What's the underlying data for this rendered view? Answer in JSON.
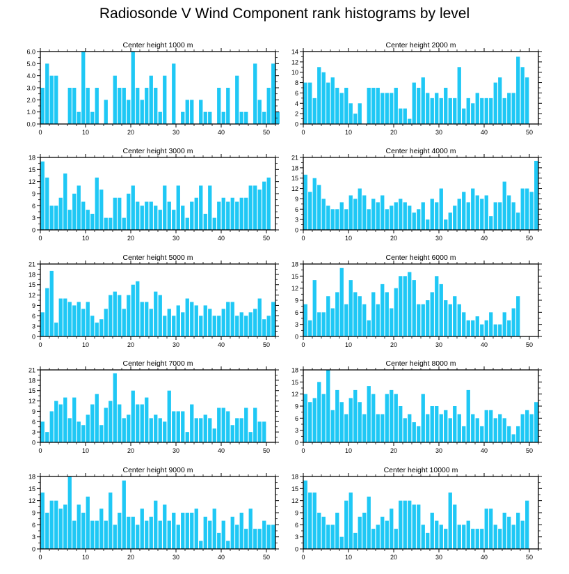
{
  "chart_data": {
    "type": "bar",
    "title": "Radiosonde V Wind Component rank histograms by level",
    "bar_color": "#1fc8f5",
    "x_ticks": [
      "0",
      "10",
      "20",
      "30",
      "40",
      "50"
    ],
    "xlim": [
      0,
      52
    ],
    "panels": [
      {
        "title": "Center height 1000 m",
        "ylim": [
          0,
          6
        ],
        "yticks": [
          "0.0",
          "1.0",
          "2.0",
          "3.0",
          "4.0",
          "5.0",
          "6.0"
        ],
        "ytick_values": [
          0,
          1,
          2,
          3,
          4,
          5,
          6
        ],
        "values": [
          3,
          5,
          4,
          4,
          0,
          0,
          3,
          3,
          1,
          6,
          3,
          1,
          3,
          0,
          2,
          0,
          4,
          3,
          3,
          2,
          6,
          3,
          2,
          3,
          4,
          3,
          1,
          4,
          0,
          5,
          0,
          1,
          2,
          2,
          0,
          2,
          1,
          1,
          0,
          3,
          1,
          3,
          0,
          4,
          1,
          1,
          0,
          5,
          2,
          1,
          3,
          5,
          1
        ]
      },
      {
        "title": "Center height 2000 m",
        "ylim": [
          0,
          14
        ],
        "yticks": [
          "0",
          "2",
          "4",
          "6",
          "8",
          "10",
          "12",
          "14"
        ],
        "ytick_values": [
          0,
          2,
          4,
          6,
          8,
          10,
          12,
          14
        ],
        "values": [
          8,
          8,
          5,
          11,
          10,
          8,
          9,
          7,
          6,
          7,
          4,
          2,
          4,
          0,
          7,
          7,
          7,
          6,
          6,
          6,
          7,
          3,
          3,
          1,
          8,
          7,
          9,
          6,
          5,
          6,
          5,
          7,
          5,
          5,
          11,
          3,
          5,
          4,
          6,
          5,
          5,
          5,
          8,
          9,
          5,
          6,
          6,
          13,
          11,
          9
        ]
      },
      {
        "title": "Center height 3000 m",
        "ylim": [
          0,
          18
        ],
        "yticks": [
          "0",
          "3",
          "6",
          "9",
          "12",
          "15",
          "18"
        ],
        "ytick_values": [
          0,
          3,
          6,
          9,
          12,
          15,
          18
        ],
        "values": [
          17,
          13,
          6,
          6,
          8,
          14,
          5,
          9,
          11,
          7,
          5,
          4,
          13,
          10,
          3,
          3,
          8,
          8,
          3,
          9,
          11,
          7,
          6,
          7,
          7,
          6,
          5,
          11,
          7,
          5,
          11,
          6,
          3,
          7,
          8,
          11,
          4,
          11,
          3,
          7,
          8,
          7,
          8,
          7,
          8,
          8,
          11,
          11,
          10,
          12,
          13
        ]
      },
      {
        "title": "Center height 4000 m",
        "ylim": [
          0,
          21
        ],
        "yticks": [
          "0",
          "3",
          "6",
          "9",
          "12",
          "15",
          "18",
          "21"
        ],
        "ytick_values": [
          0,
          3,
          6,
          9,
          12,
          15,
          18,
          21
        ],
        "values": [
          16,
          11,
          15,
          13,
          9,
          7,
          6,
          6,
          8,
          6,
          10,
          9,
          12,
          10,
          6,
          9,
          8,
          10,
          6,
          7,
          8,
          9,
          8,
          7,
          5,
          6,
          8,
          3,
          9,
          8,
          12,
          3,
          5,
          7,
          9,
          11,
          8,
          12,
          10,
          9,
          10,
          4,
          8,
          8,
          14,
          10,
          8,
          5,
          12,
          12,
          11,
          20
        ]
      },
      {
        "title": "Center height 5000 m",
        "ylim": [
          0,
          21
        ],
        "yticks": [
          "0",
          "3",
          "6",
          "9",
          "12",
          "15",
          "18",
          "21"
        ],
        "ytick_values": [
          0,
          3,
          6,
          9,
          12,
          15,
          18,
          21
        ],
        "values": [
          7,
          14,
          19,
          4,
          11,
          11,
          10,
          9,
          10,
          8,
          10,
          6,
          4,
          5,
          8,
          12,
          13,
          12,
          8,
          12,
          15,
          16,
          10,
          10,
          8,
          13,
          12,
          6,
          8,
          6,
          9,
          7,
          11,
          10,
          9,
          6,
          9,
          8,
          6,
          6,
          8,
          10,
          10,
          6,
          7,
          6,
          7,
          8,
          11,
          5,
          6,
          10
        ]
      },
      {
        "title": "Center height 6000 m",
        "ylim": [
          0,
          18
        ],
        "yticks": [
          "0",
          "3",
          "6",
          "9",
          "12",
          "15",
          "18"
        ],
        "ytick_values": [
          0,
          3,
          6,
          9,
          12,
          15,
          18
        ],
        "values": [
          8,
          4,
          14,
          6,
          6,
          10,
          7,
          11,
          17,
          8,
          14,
          11,
          10,
          8,
          4,
          11,
          8,
          13,
          11,
          7,
          12,
          15,
          15,
          16,
          14,
          8,
          8,
          9,
          11,
          15,
          13,
          9,
          8,
          10,
          8,
          6,
          4,
          4,
          5,
          3,
          4,
          6,
          3,
          3,
          6,
          4,
          7,
          10
        ]
      },
      {
        "title": "Center height 7000 m",
        "ylim": [
          0,
          21
        ],
        "yticks": [
          "0",
          "3",
          "6",
          "9",
          "12",
          "15",
          "18",
          "21"
        ],
        "ytick_values": [
          0,
          3,
          6,
          9,
          12,
          15,
          18,
          21
        ],
        "values": [
          6,
          3,
          9,
          12,
          11,
          13,
          7,
          13,
          6,
          5,
          8,
          11,
          14,
          5,
          10,
          12,
          20,
          11,
          7,
          8,
          15,
          11,
          11,
          13,
          7,
          8,
          7,
          6,
          15,
          9,
          9,
          9,
          3,
          11,
          7,
          7,
          8,
          7,
          4,
          10,
          10,
          9,
          5,
          7,
          7,
          10,
          3,
          10,
          6,
          6
        ]
      },
      {
        "title": "Center height 8000 m",
        "ylim": [
          0,
          18
        ],
        "yticks": [
          "0",
          "3",
          "6",
          "9",
          "12",
          "15",
          "18"
        ],
        "ytick_values": [
          0,
          3,
          6,
          9,
          12,
          15,
          18
        ],
        "values": [
          12,
          10,
          11,
          15,
          12,
          18,
          8,
          13,
          10,
          7,
          11,
          13,
          10,
          7,
          14,
          12,
          7,
          7,
          12,
          13,
          12,
          9,
          6,
          7,
          5,
          4,
          12,
          7,
          9,
          9,
          7,
          8,
          6,
          9,
          7,
          4,
          13,
          7,
          6,
          4,
          8,
          8,
          6,
          7,
          6,
          4,
          2,
          4,
          7,
          8,
          7,
          10
        ]
      },
      {
        "title": "Center height 9000 m",
        "ylim": [
          0,
          18
        ],
        "yticks": [
          "0",
          "3",
          "6",
          "9",
          "12",
          "15",
          "18"
        ],
        "ytick_values": [
          0,
          3,
          6,
          9,
          12,
          15,
          18
        ],
        "values": [
          14,
          9,
          12,
          12,
          10,
          11,
          18,
          7,
          11,
          9,
          13,
          7,
          7,
          10,
          7,
          14,
          6,
          9,
          17,
          8,
          8,
          6,
          10,
          7,
          8,
          12,
          7,
          11,
          7,
          9,
          6,
          9,
          9,
          9,
          10,
          2,
          8,
          7,
          10,
          4,
          7,
          2,
          8,
          6,
          9,
          5,
          10,
          5,
          5,
          7,
          6,
          6
        ]
      },
      {
        "title": "Center height 10000 m",
        "ylim": [
          0,
          18
        ],
        "yticks": [
          "0",
          "3",
          "6",
          "9",
          "12",
          "15",
          "18"
        ],
        "ytick_values": [
          0,
          3,
          6,
          9,
          12,
          15,
          18
        ],
        "values": [
          17,
          14,
          14,
          9,
          8,
          6,
          6,
          9,
          3,
          12,
          14,
          4,
          8,
          9,
          13,
          5,
          6,
          8,
          7,
          10,
          5,
          12,
          12,
          12,
          11,
          11,
          6,
          4,
          9,
          7,
          6,
          5,
          14,
          11,
          6,
          6,
          7,
          5,
          5,
          5,
          10,
          10,
          6,
          5,
          9,
          8,
          6,
          9,
          7,
          12
        ]
      }
    ]
  }
}
